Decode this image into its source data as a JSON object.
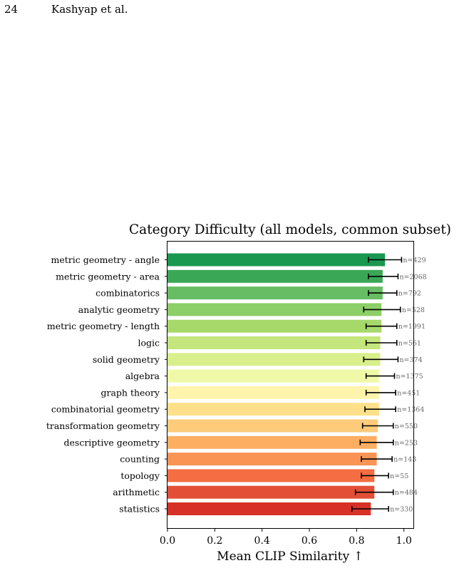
{
  "page": {
    "number": "24",
    "running_head": "Kashyap et al."
  },
  "chart_data": {
    "type": "bar",
    "orientation": "horizontal",
    "title": "Category Difficulty (all models, common subset)",
    "xlabel": "Mean CLIP Similarity ↑",
    "ylabel": "",
    "xlim": [
      0.0,
      1.04
    ],
    "xticks": [
      "0.0",
      "0.2",
      "0.4",
      "0.6",
      "0.8",
      "1.0"
    ],
    "grid": false,
    "categories": [
      "metric geometry - angle",
      "metric geometry - area",
      "combinatorics",
      "analytic geometry",
      "metric geometry - length",
      "logic",
      "solid geometry",
      "algebra",
      "graph theory",
      "combinatorial geometry",
      "transformation geometry",
      "descriptive geometry",
      "counting",
      "topology",
      "arithmetic",
      "statistics"
    ],
    "values": [
      0.92,
      0.91,
      0.91,
      0.905,
      0.905,
      0.9,
      0.9,
      0.895,
      0.895,
      0.895,
      0.89,
      0.885,
      0.885,
      0.875,
      0.875,
      0.86
    ],
    "error_low": [
      0.85,
      0.85,
      0.85,
      0.83,
      0.84,
      0.84,
      0.83,
      0.84,
      0.84,
      0.835,
      0.825,
      0.815,
      0.82,
      0.82,
      0.795,
      0.78
    ],
    "error_high": [
      0.99,
      0.975,
      0.97,
      0.985,
      0.97,
      0.97,
      0.975,
      0.96,
      0.965,
      0.965,
      0.955,
      0.955,
      0.95,
      0.935,
      0.955,
      0.935
    ],
    "counts": [
      "n=429",
      "n=2068",
      "n=792",
      "n=528",
      "n=1991",
      "n=561",
      "n=374",
      "n=1375",
      "n=451",
      "n=1364",
      "n=550",
      "n=253",
      "n=143",
      "n=55",
      "n=484",
      "n=330"
    ],
    "colors": [
      "#1a9850",
      "#3aa757",
      "#66bd63",
      "#8cce67",
      "#a6d96a",
      "#c4e67c",
      "#d9ef8b",
      "#f0f9a8",
      "#fff4ac",
      "#fee08b",
      "#fdcb7a",
      "#fdae61",
      "#f99455",
      "#f46d43",
      "#e34f36",
      "#d73027"
    ]
  }
}
